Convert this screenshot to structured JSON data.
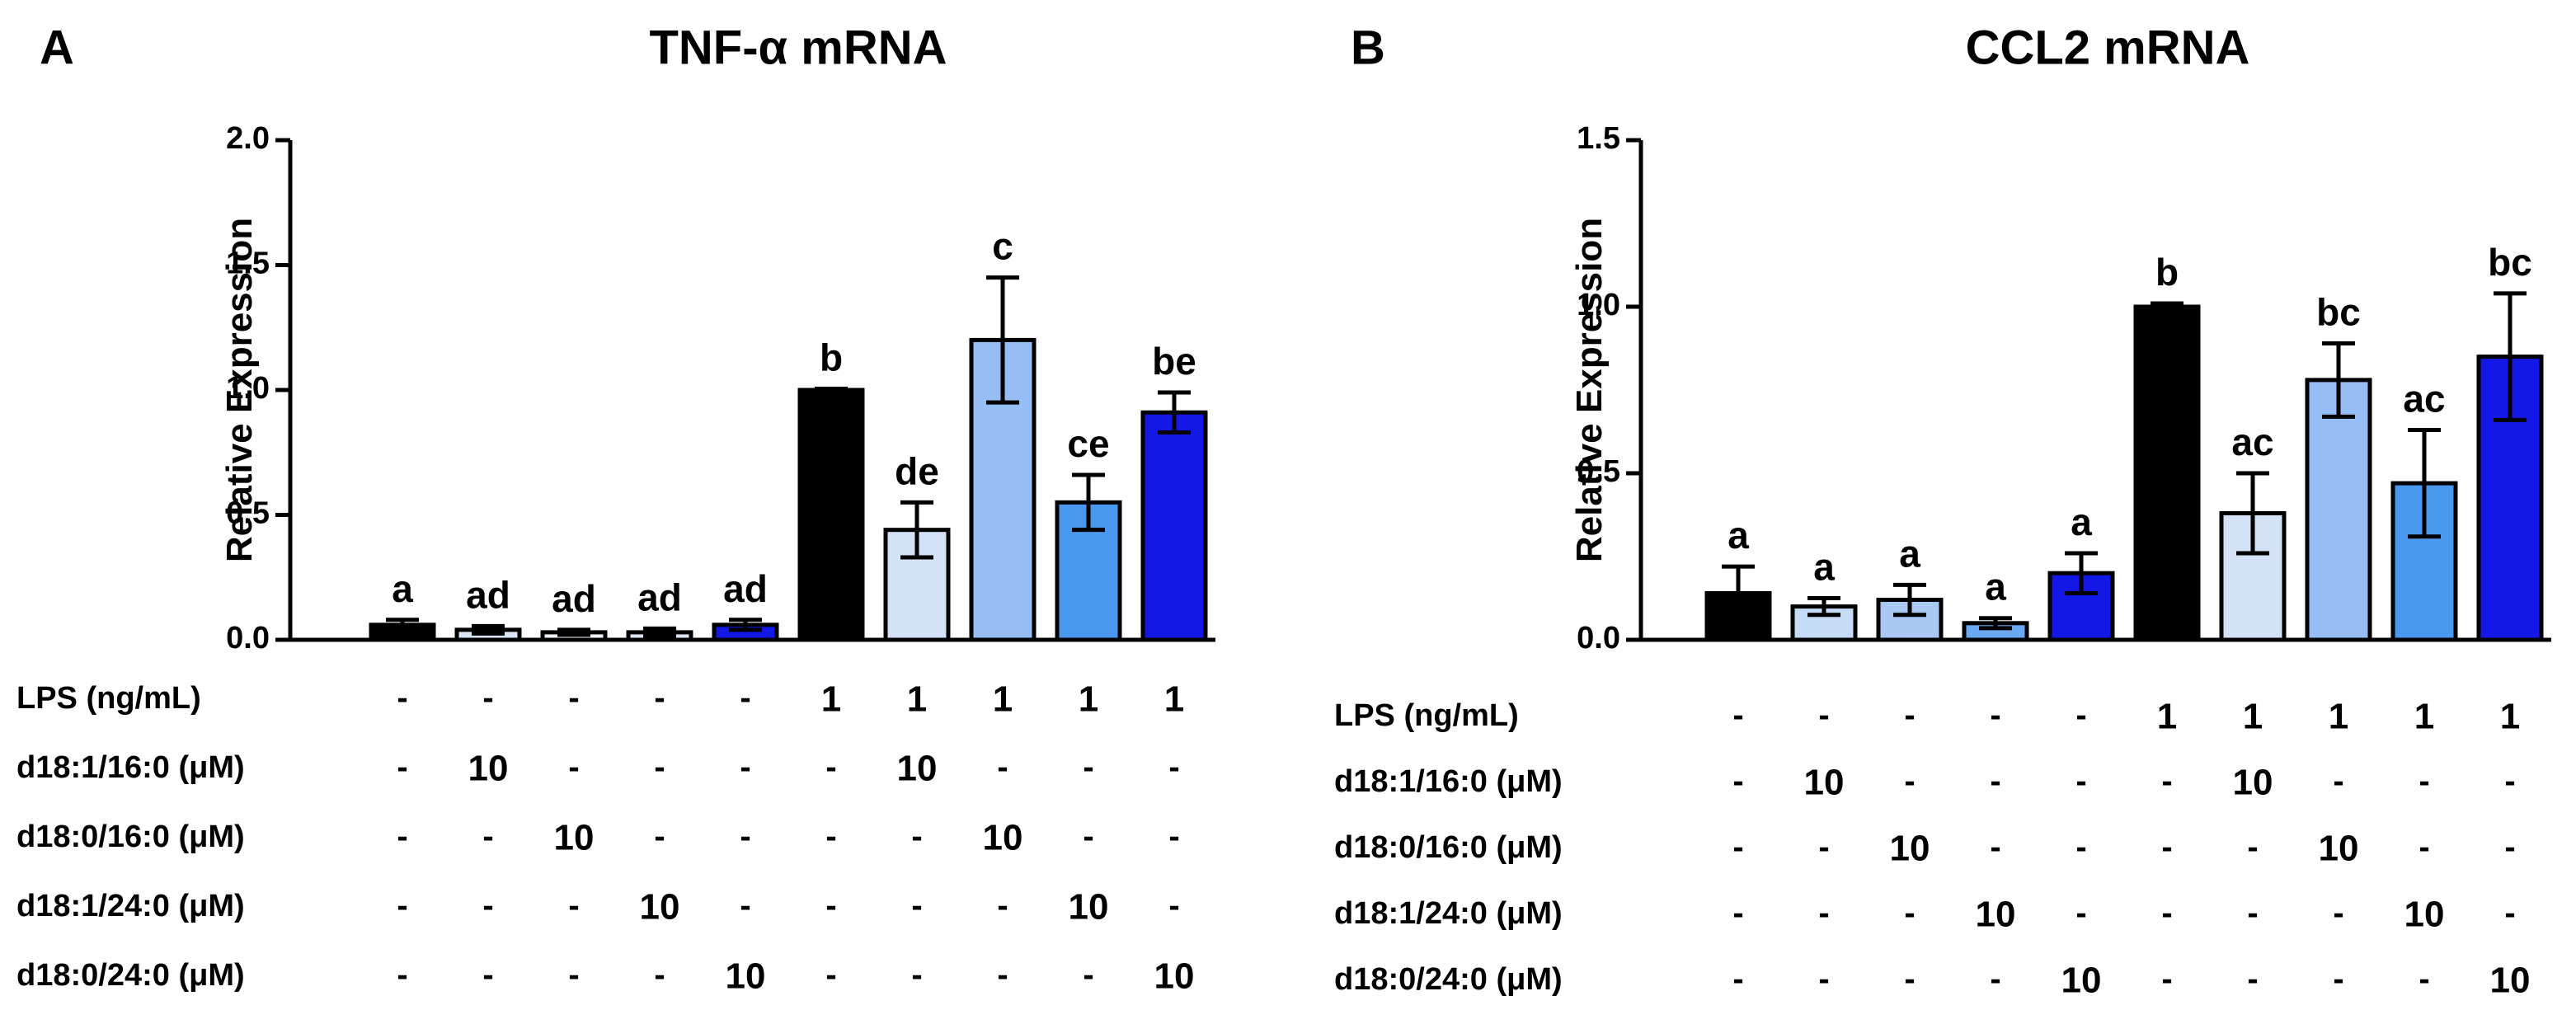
{
  "chart_data": [
    {
      "panel_label": "A",
      "type": "bar",
      "title": "TNF-α mRNA",
      "ylabel": "Relative Expression",
      "ylim": [
        0,
        2.0
      ],
      "yticks": [
        "0.0",
        "0.5",
        "1.0",
        "1.5",
        "2.0"
      ],
      "ytick_values": [
        0,
        0.5,
        1.0,
        1.5,
        2.0
      ],
      "values": [
        0.06,
        0.04,
        0.03,
        0.03,
        0.06,
        1.0,
        0.44,
        1.2,
        0.55,
        0.91
      ],
      "errors": [
        0.02,
        0.015,
        0.01,
        0.015,
        0.02,
        0.005,
        0.11,
        0.25,
        0.11,
        0.08
      ],
      "letters": [
        "a",
        "ad",
        "ad",
        "ad",
        "ad",
        "b",
        "de",
        "c",
        "ce",
        "be"
      ],
      "colors": [
        "#000000",
        "#d9e6f7",
        "#eef3fb",
        "#dce8f8",
        "#1418e6",
        "#000000",
        "#d3e2f6",
        "#97bdf5",
        "#4a98f0",
        "#1418e6"
      ],
      "conditions": [
        {
          "label": "LPS (ng/mL)",
          "values": [
            "-",
            "-",
            "-",
            "-",
            "-",
            "1",
            "1",
            "1",
            "1",
            "1"
          ]
        },
        {
          "label": "d18:1/16:0 (μM)",
          "values": [
            "-",
            "10",
            "-",
            "-",
            "-",
            "-",
            "10",
            "-",
            "-",
            "-"
          ]
        },
        {
          "label": "d18:0/16:0 (μM)",
          "values": [
            "-",
            "-",
            "10",
            "-",
            "-",
            "-",
            "-",
            "10",
            "-",
            "-"
          ]
        },
        {
          "label": "d18:1/24:0 (μM)",
          "values": [
            "-",
            "-",
            "-",
            "10",
            "-",
            "-",
            "-",
            "-",
            "10",
            "-"
          ]
        },
        {
          "label": "d18:0/24:0 (μM)",
          "values": [
            "-",
            "-",
            "-",
            "-",
            "10",
            "-",
            "-",
            "-",
            "-",
            "10"
          ]
        }
      ]
    },
    {
      "panel_label": "B",
      "type": "bar",
      "title": "CCL2 mRNA",
      "ylabel": "Relative Expression",
      "ylim": [
        0,
        1.5
      ],
      "yticks": [
        "0.0",
        "0.5",
        "1.0",
        "1.5"
      ],
      "ytick_values": [
        0,
        0.5,
        1.0,
        1.5
      ],
      "values": [
        0.14,
        0.1,
        0.12,
        0.05,
        0.2,
        1.0,
        0.38,
        0.78,
        0.47,
        0.85
      ],
      "errors": [
        0.08,
        0.025,
        0.045,
        0.015,
        0.06,
        0.01,
        0.12,
        0.11,
        0.16,
        0.19
      ],
      "letters": [
        "a",
        "a",
        "a",
        "a",
        "a",
        "b",
        "ac",
        "bc",
        "ac",
        "bc"
      ],
      "colors": [
        "#000000",
        "#c6dbf6",
        "#a9c9f4",
        "#6aa8f2",
        "#1418e6",
        "#000000",
        "#d3e2f6",
        "#97bdf5",
        "#4a98f0",
        "#1418e6"
      ],
      "conditions": [
        {
          "label": "LPS (ng/mL)",
          "values": [
            "-",
            "-",
            "-",
            "-",
            "-",
            "1",
            "1",
            "1",
            "1",
            "1"
          ]
        },
        {
          "label": "d18:1/16:0 (μM)",
          "values": [
            "-",
            "10",
            "-",
            "-",
            "-",
            "-",
            "10",
            "-",
            "-",
            "-"
          ]
        },
        {
          "label": "d18:0/16:0 (μM)",
          "values": [
            "-",
            "-",
            "10",
            "-",
            "-",
            "-",
            "-",
            "10",
            "-",
            "-"
          ]
        },
        {
          "label": "d18:1/24:0 (μM)",
          "values": [
            "-",
            "-",
            "-",
            "10",
            "-",
            "-",
            "-",
            "-",
            "10",
            "-"
          ]
        },
        {
          "label": "d18:0/24:0 (μM)",
          "values": [
            "-",
            "-",
            "-",
            "-",
            "10",
            "-",
            "-",
            "-",
            "-",
            "10"
          ]
        }
      ]
    }
  ]
}
